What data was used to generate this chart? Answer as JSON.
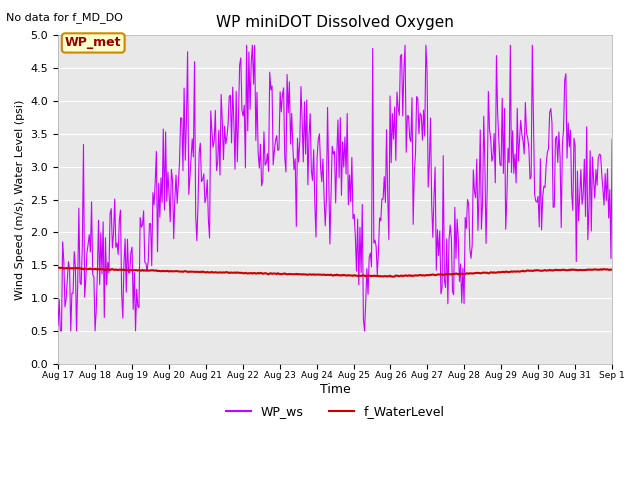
{
  "title": "WP miniDOT Dissolved Oxygen",
  "top_left_text": "No data for f_MD_DO",
  "ylabel": "Wind Speed (m/s), Water Level (psi)",
  "xlabel": "Time",
  "ylim": [
    0.0,
    5.0
  ],
  "yticks": [
    0.0,
    0.5,
    1.0,
    1.5,
    2.0,
    2.5,
    3.0,
    3.5,
    4.0,
    4.5,
    5.0
  ],
  "background_color": "#e8e8e8",
  "fig_background": "#ffffff",
  "wp_ws_color": "#cc00ff",
  "f_water_color": "#cc0000",
  "annotation_text": "WP_met",
  "annotation_bg": "#ffffcc",
  "annotation_edge": "#cc8800",
  "legend_labels": [
    "WP_ws",
    "f_WaterLevel"
  ],
  "date_labels": [
    "Aug 17",
    "Aug 18",
    "Aug 19",
    "Aug 20",
    "Aug 21",
    "Aug 22",
    "Aug 23",
    "Aug 24",
    "Aug 25",
    "Aug 26",
    "Aug 27",
    "Aug 28",
    "Aug 29",
    "Aug 30",
    "Aug 31",
    "Sep 1"
  ]
}
